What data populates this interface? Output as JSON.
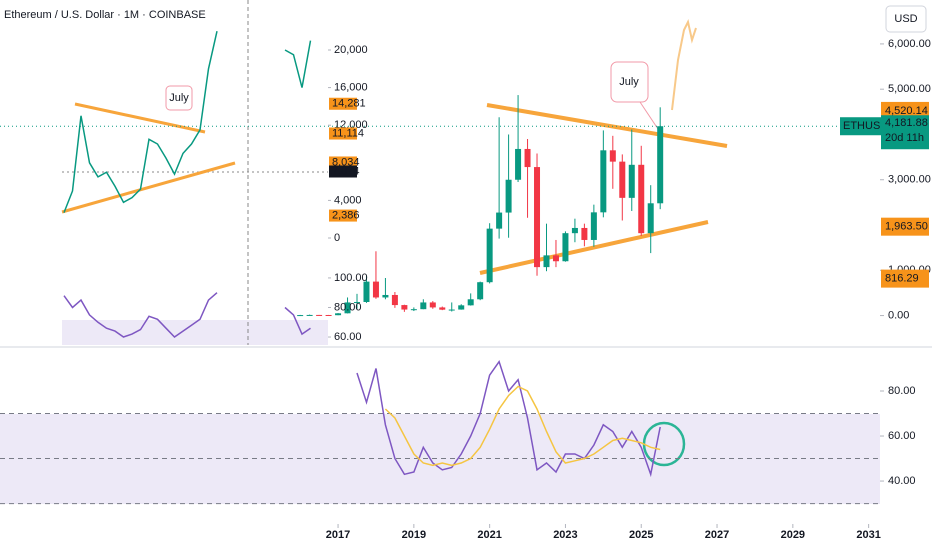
{
  "chart_data": [
    {
      "type": "candlestick",
      "title": "Ethereum / U.S. Dollar · 1M · COINBASE",
      "currency_button": "USD",
      "x": [
        2016.0,
        2016.25,
        2016.5,
        2016.75,
        2017.0,
        2017.25,
        2017.5,
        2017.75,
        2018.0,
        2018.25,
        2018.5,
        2018.75,
        2019.0,
        2019.25,
        2019.5,
        2019.75,
        2020.0,
        2020.25,
        2020.5,
        2020.75,
        2021.0,
        2021.25,
        2021.5,
        2021.75,
        2022.0,
        2022.25,
        2022.5,
        2022.75,
        2023.0,
        2023.25,
        2023.5,
        2023.75,
        2024.0,
        2024.25,
        2024.5,
        2024.75,
        2025.0,
        2025.25,
        2025.5
      ],
      "open": [
        1,
        11,
        14,
        13,
        8,
        50,
        290,
        300,
        750,
        400,
        455,
        232,
        133,
        141,
        290,
        180,
        130,
        133,
        226,
        360,
        737,
        1920,
        2275,
        3000,
        3680,
        3280,
        1070,
        1330,
        1200,
        1820,
        1935,
        1670,
        2280,
        3650,
        3400,
        2600,
        3330,
        1820,
        2480
      ],
      "high": [
        15,
        21,
        15,
        14,
        55,
        400,
        480,
        880,
        1420,
        830,
        520,
        240,
        180,
        360,
        320,
        200,
        290,
        250,
        490,
        750,
        2040,
        4380,
        4000,
        4870,
        3900,
        3580,
        2030,
        1670,
        1860,
        2140,
        2030,
        2450,
        4090,
        3970,
        3560,
        4110,
        3750,
        2880,
        4600
      ],
      "low": [
        1,
        7,
        10,
        7,
        8,
        48,
        150,
        280,
        370,
        360,
        170,
        82,
        100,
        140,
        150,
        120,
        90,
        130,
        220,
        340,
        710,
        1700,
        1720,
        2950,
        2160,
        880,
        980,
        1070,
        1190,
        1620,
        1530,
        1520,
        2170,
        2800,
        2100,
        2310,
        1760,
        1380,
        2350
      ],
      "close": [
        11,
        14,
        13,
        8,
        50,
        290,
        300,
        750,
        400,
        455,
        232,
        133,
        141,
        290,
        180,
        130,
        133,
        226,
        360,
        737,
        1920,
        2275,
        3000,
        3680,
        3280,
        1070,
        1330,
        1200,
        1820,
        1935,
        1670,
        2280,
        3650,
        3400,
        2600,
        3330,
        1820,
        2480,
        4181.88
      ],
      "up_color": "#089981",
      "down_color": "#f23645",
      "xlim": [
        2008.08,
        2031.3
      ],
      "xticks": [
        2017,
        2019,
        2021,
        2023,
        2025,
        2027,
        2029,
        2031
      ],
      "ylim": [
        -650,
        6970
      ],
      "yticks": [
        {
          "value": 0,
          "label": "0.00"
        },
        {
          "value": 1000,
          "label": "1,000.00"
        },
        {
          "value": 3000,
          "label": "3,000.00"
        },
        {
          "value": 5000,
          "label": "5,000.00"
        },
        {
          "value": 6000,
          "label": "6,000.00"
        }
      ],
      "price_labels": [
        {
          "value": 4520.14,
          "label": "4,520.14",
          "color": "#f7931a"
        },
        {
          "value": 1963.5,
          "label": "1,963.50",
          "color": "#f7931a"
        },
        {
          "value": 816.29,
          "label": "816.29",
          "color": "#f7931a"
        }
      ],
      "last": {
        "symbol": "ETHUSD",
        "value": 4181.88,
        "label": "4,181.88",
        "countdown": "20d 11h",
        "color": "#089981"
      },
      "annotation": "July"
    },
    {
      "type": "line",
      "x": [
        2017.5,
        2017.75,
        2018.0,
        2018.25,
        2018.5,
        2018.75,
        2019.0,
        2019.25,
        2019.5,
        2019.75,
        2020.0,
        2020.25,
        2020.5,
        2020.75,
        2021.0,
        2021.25,
        2021.5,
        2021.75,
        2022.0,
        2022.25,
        2022.5,
        2022.75,
        2023.0,
        2023.25,
        2023.5,
        2023.75,
        2024.0,
        2024.25,
        2024.5,
        2024.75,
        2025.0,
        2025.25,
        2025.5
      ],
      "series": [
        {
          "color": "#7e57c2",
          "values": [
            88,
            75,
            90,
            65,
            50,
            43,
            44,
            55,
            48,
            45,
            46,
            52,
            60,
            70,
            87,
            93,
            80,
            85,
            68,
            45,
            48,
            44,
            52,
            52,
            50,
            56,
            65,
            62,
            55,
            62,
            55,
            43,
            64
          ]
        },
        {
          "color": "#f5c542",
          "values": [
            null,
            null,
            null,
            72,
            68,
            60,
            52,
            48,
            47,
            48,
            47,
            48,
            50,
            55,
            63,
            72,
            78,
            82,
            80,
            72,
            62,
            53,
            48,
            49,
            50,
            52,
            55,
            58,
            59,
            58,
            57,
            55,
            54
          ]
        }
      ],
      "xlim": [
        2008.08,
        2031.3
      ],
      "ylim": [
        22.7,
        99.1
      ],
      "yticks": [
        {
          "value": 40,
          "label": "40.00"
        },
        {
          "value": 60,
          "label": "60.00"
        },
        {
          "value": 80,
          "label": "80.00"
        }
      ],
      "bands": [
        30,
        50,
        70
      ]
    },
    {
      "type": "line",
      "categories": [
        null,
        null,
        null,
        null,
        null,
        null,
        null,
        null,
        null,
        null,
        null,
        null,
        null,
        null,
        null,
        null,
        null,
        null,
        null,
        null,
        null,
        null,
        null,
        null,
        null,
        null,
        null,
        null,
        null,
        null
      ],
      "price": {
        "color": "#089981",
        "values": [
          2700,
          5000,
          13000,
          8000,
          6500,
          7000,
          5500,
          3800,
          4300,
          5200,
          10500,
          10000,
          8500,
          6800,
          9000,
          10000,
          11500,
          18000,
          22000,
          null,
          null,
          null,
          null,
          null,
          null,
          null,
          20000,
          19500,
          16000,
          21000
        ],
        "ylim": [
          -2128,
          25319
        ],
        "yticks": [
          0,
          {
            "value": 4000,
            "label": "4,000"
          },
          {
            "value": 12000,
            "label": "12,000"
          },
          {
            "value": 16000,
            "label": "16,000"
          },
          {
            "value": 20000,
            "label": "20,000"
          }
        ],
        "price_labels": [
          {
            "value": 14281,
            "label": "14,281",
            "color": "#f7931a"
          },
          {
            "value": 11114,
            "label": "11,114",
            "color": "#f7931a"
          },
          {
            "value": 8034,
            "label": "8,034",
            "color": "#f7931a"
          },
          {
            "value": 7074,
            "label": "7,074",
            "color": "#131722"
          },
          {
            "value": 2386,
            "label": "2,386",
            "color": "#f7931a"
          }
        ]
      },
      "rsi": {
        "color": "#7e57c2",
        "values": [
          88,
          80,
          85,
          75,
          70,
          66,
          64,
          60,
          62,
          65,
          74,
          72,
          66,
          60,
          64,
          68,
          72,
          85,
          90,
          null,
          null,
          null,
          null,
          null,
          null,
          null,
          80,
          75,
          62,
          66
        ],
        "ylim": [
          54.6,
          98.6
        ],
        "yticks": [
          {
            "value": 60,
            "label": "60.00"
          },
          {
            "value": 80,
            "label": "80.00"
          },
          {
            "value": 100,
            "label": "100.00"
          }
        ]
      },
      "annotation": "July"
    }
  ]
}
